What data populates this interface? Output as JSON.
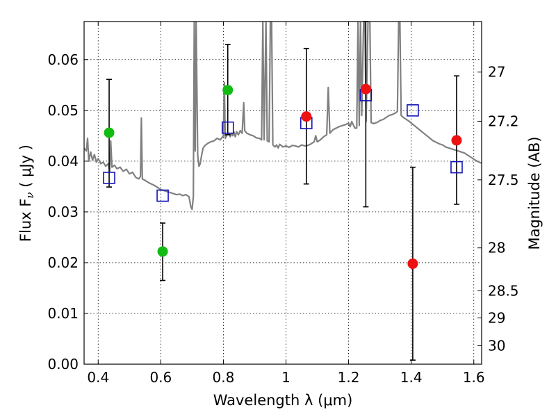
{
  "chart_data": {
    "type": "scatter",
    "title": "",
    "xlabel": "Wavelength  λ (μm)",
    "ylabel": "Flux  F",
    "ylabel_sub": "ν",
    "ylabel_unit": "  ( μJy )",
    "y2label": "Magnitude (AB)",
    "xlim": [
      0.355,
      1.625
    ],
    "ylim": [
      0.0,
      0.0675
    ],
    "grid": true,
    "legend": "none",
    "x_ticks": [
      {
        "value": 0.4,
        "label": "0.4"
      },
      {
        "value": 0.6,
        "label": "0.6"
      },
      {
        "value": 0.8,
        "label": "0.8"
      },
      {
        "value": 1.0,
        "label": "1"
      },
      {
        "value": 1.2,
        "label": "1.2"
      },
      {
        "value": 1.4,
        "label": "1.4"
      },
      {
        "value": 1.6,
        "label": "1.6"
      }
    ],
    "y_ticks": [
      {
        "value": 0.0,
        "label": "0.00"
      },
      {
        "value": 0.01,
        "label": "0.01"
      },
      {
        "value": 0.02,
        "label": "0.02"
      },
      {
        "value": 0.03,
        "label": "0.03"
      },
      {
        "value": 0.04,
        "label": "0.04"
      },
      {
        "value": 0.05,
        "label": "0.05"
      },
      {
        "value": 0.06,
        "label": "0.06"
      }
    ],
    "y2_ticks": [
      {
        "value": 27.0,
        "label": "27"
      },
      {
        "value": 27.2,
        "label": "27.2"
      },
      {
        "value": 27.5,
        "label": "27.5"
      },
      {
        "value": 28.0,
        "label": "28"
      },
      {
        "value": 28.5,
        "label": "28.5"
      },
      {
        "value": 29.0,
        "label": "29"
      },
      {
        "value": 30.0,
        "label": "30"
      }
    ],
    "colors": {
      "green": "#11bb11",
      "red": "#ee1111",
      "blue": "#1111bb",
      "spectrum": "#808080",
      "errorbar": "#000000"
    },
    "spectrum": [
      [
        0.355,
        0.0425
      ],
      [
        0.362,
        0.042
      ],
      [
        0.366,
        0.0445
      ],
      [
        0.37,
        0.04
      ],
      [
        0.376,
        0.0418
      ],
      [
        0.382,
        0.0402
      ],
      [
        0.388,
        0.0413
      ],
      [
        0.394,
        0.0398
      ],
      [
        0.4,
        0.0405
      ],
      [
        0.408,
        0.0395
      ],
      [
        0.416,
        0.0398
      ],
      [
        0.424,
        0.039
      ],
      [
        0.432,
        0.0395
      ],
      [
        0.437,
        0.038
      ],
      [
        0.44,
        0.044
      ],
      [
        0.444,
        0.0388
      ],
      [
        0.452,
        0.0392
      ],
      [
        0.46,
        0.0385
      ],
      [
        0.47,
        0.0388
      ],
      [
        0.48,
        0.038
      ],
      [
        0.49,
        0.0384
      ],
      [
        0.5,
        0.0375
      ],
      [
        0.51,
        0.0378
      ],
      [
        0.52,
        0.0368
      ],
      [
        0.53,
        0.0365
      ],
      [
        0.535,
        0.037
      ],
      [
        0.538,
        0.0485
      ],
      [
        0.541,
        0.0365
      ],
      [
        0.55,
        0.0362
      ],
      [
        0.56,
        0.0358
      ],
      [
        0.57,
        0.0355
      ],
      [
        0.58,
        0.0352
      ],
      [
        0.59,
        0.0348
      ],
      [
        0.6,
        0.0344
      ],
      [
        0.61,
        0.0342
      ],
      [
        0.62,
        0.034
      ],
      [
        0.63,
        0.0338
      ],
      [
        0.64,
        0.0336
      ],
      [
        0.65,
        0.0334
      ],
      [
        0.66,
        0.0335
      ],
      [
        0.67,
        0.0332
      ],
      [
        0.68,
        0.0334
      ],
      [
        0.69,
        0.033
      ],
      [
        0.696,
        0.031
      ],
      [
        0.7,
        0.0305
      ],
      [
        0.704,
        0.033
      ],
      [
        0.707,
        0.0675
      ],
      [
        0.71,
        0.042
      ],
      [
        0.713,
        0.0675
      ],
      [
        0.718,
        0.041
      ],
      [
        0.722,
        0.039
      ],
      [
        0.726,
        0.0395
      ],
      [
        0.73,
        0.041
      ],
      [
        0.735,
        0.0425
      ],
      [
        0.74,
        0.043
      ],
      [
        0.75,
        0.0435
      ],
      [
        0.76,
        0.0438
      ],
      [
        0.77,
        0.044
      ],
      [
        0.78,
        0.0445
      ],
      [
        0.79,
        0.0442
      ],
      [
        0.8,
        0.045
      ],
      [
        0.803,
        0.0555
      ],
      [
        0.806,
        0.0445
      ],
      [
        0.812,
        0.0452
      ],
      [
        0.818,
        0.0455
      ],
      [
        0.822,
        0.0448
      ],
      [
        0.826,
        0.0455
      ],
      [
        0.83,
        0.045
      ],
      [
        0.834,
        0.0457
      ],
      [
        0.838,
        0.0448
      ],
      [
        0.842,
        0.0458
      ],
      [
        0.848,
        0.0452
      ],
      [
        0.854,
        0.046
      ],
      [
        0.86,
        0.0455
      ],
      [
        0.865,
        0.0515
      ],
      [
        0.868,
        0.046
      ],
      [
        0.875,
        0.0455
      ],
      [
        0.885,
        0.0452
      ],
      [
        0.895,
        0.045
      ],
      [
        0.905,
        0.0446
      ],
      [
        0.915,
        0.0445
      ],
      [
        0.922,
        0.0442
      ],
      [
        0.926,
        0.0675
      ],
      [
        0.93,
        0.0442
      ],
      [
        0.936,
        0.0675
      ],
      [
        0.94,
        0.044
      ],
      [
        0.946,
        0.0438
      ],
      [
        0.95,
        0.0675
      ],
      [
        0.954,
        0.0675
      ],
      [
        0.958,
        0.0432
      ],
      [
        0.965,
        0.0428
      ],
      [
        0.97,
        0.0432
      ],
      [
        0.975,
        0.0426
      ],
      [
        0.98,
        0.0433
      ],
      [
        0.99,
        0.0428
      ],
      [
        1.0,
        0.043
      ],
      [
        1.01,
        0.0427
      ],
      [
        1.02,
        0.0431
      ],
      [
        1.03,
        0.043
      ],
      [
        1.04,
        0.0428
      ],
      [
        1.05,
        0.0432
      ],
      [
        1.06,
        0.043
      ],
      [
        1.07,
        0.0431
      ],
      [
        1.08,
        0.0434
      ],
      [
        1.09,
        0.0438
      ],
      [
        1.095,
        0.045
      ],
      [
        1.1,
        0.0438
      ],
      [
        1.11,
        0.0442
      ],
      [
        1.12,
        0.0448
      ],
      [
        1.13,
        0.0452
      ],
      [
        1.135,
        0.0545
      ],
      [
        1.14,
        0.0455
      ],
      [
        1.15,
        0.0462
      ],
      [
        1.16,
        0.0465
      ],
      [
        1.17,
        0.0468
      ],
      [
        1.18,
        0.047
      ],
      [
        1.19,
        0.0472
      ],
      [
        1.2,
        0.0475
      ],
      [
        1.205,
        0.0468
      ],
      [
        1.21,
        0.0478
      ],
      [
        1.22,
        0.0465
      ],
      [
        1.226,
        0.0465
      ],
      [
        1.23,
        0.0675
      ],
      [
        1.234,
        0.047
      ],
      [
        1.238,
        0.0675
      ],
      [
        1.242,
        0.049
      ],
      [
        1.248,
        0.0675
      ],
      [
        1.252,
        0.0675
      ],
      [
        1.256,
        0.0478
      ],
      [
        1.262,
        0.0675
      ],
      [
        1.268,
        0.0675
      ],
      [
        1.272,
        0.0476
      ],
      [
        1.28,
        0.0474
      ],
      [
        1.29,
        0.0476
      ],
      [
        1.296,
        0.0478
      ],
      [
        1.3,
        0.048
      ],
      [
        1.31,
        0.0482
      ],
      [
        1.32,
        0.0486
      ],
      [
        1.33,
        0.049
      ],
      [
        1.34,
        0.0492
      ],
      [
        1.35,
        0.0495
      ],
      [
        1.356,
        0.0498
      ],
      [
        1.36,
        0.0675
      ],
      [
        1.364,
        0.0675
      ],
      [
        1.368,
        0.049
      ],
      [
        1.375,
        0.0486
      ],
      [
        1.385,
        0.0482
      ],
      [
        1.395,
        0.0478
      ],
      [
        1.4,
        0.0475
      ],
      [
        1.41,
        0.047
      ],
      [
        1.42,
        0.0465
      ],
      [
        1.43,
        0.046
      ],
      [
        1.44,
        0.0455
      ],
      [
        1.45,
        0.045
      ],
      [
        1.46,
        0.0445
      ],
      [
        1.47,
        0.044
      ],
      [
        1.48,
        0.0437
      ],
      [
        1.49,
        0.0434
      ],
      [
        1.5,
        0.0432
      ],
      [
        1.51,
        0.0428
      ],
      [
        1.52,
        0.0426
      ],
      [
        1.53,
        0.0424
      ],
      [
        1.54,
        0.0422
      ],
      [
        1.55,
        0.042
      ],
      [
        1.56,
        0.0418
      ],
      [
        1.57,
        0.0416
      ],
      [
        1.58,
        0.0412
      ],
      [
        1.59,
        0.0408
      ],
      [
        1.6,
        0.0404
      ],
      [
        1.61,
        0.04
      ],
      [
        1.625,
        0.0396
      ]
    ],
    "model_points": [
      {
        "x": 0.435,
        "y": 0.0367
      },
      {
        "x": 0.606,
        "y": 0.0332
      },
      {
        "x": 0.814,
        "y": 0.0466
      },
      {
        "x": 1.065,
        "y": 0.0475
      },
      {
        "x": 1.255,
        "y": 0.053
      },
      {
        "x": 1.405,
        "y": 0.05
      },
      {
        "x": 1.545,
        "y": 0.0388
      }
    ],
    "observed_points": [
      {
        "x": 0.435,
        "y": 0.0456,
        "ylow": 0.0349,
        "yhigh": 0.0561,
        "color": "green"
      },
      {
        "x": 0.606,
        "y": 0.0222,
        "ylow": 0.0165,
        "yhigh": 0.0278,
        "color": "green"
      },
      {
        "x": 0.814,
        "y": 0.054,
        "ylow": 0.0452,
        "yhigh": 0.063,
        "color": "green"
      },
      {
        "x": 1.065,
        "y": 0.0488,
        "ylow": 0.0355,
        "yhigh": 0.0622,
        "color": "red"
      },
      {
        "x": 1.255,
        "y": 0.0542,
        "ylow": 0.031,
        "yhigh": 0.0675,
        "color": "red"
      },
      {
        "x": 1.405,
        "y": 0.0198,
        "ylow": 0.0008,
        "yhigh": 0.0388,
        "color": "red"
      },
      {
        "x": 1.545,
        "y": 0.0441,
        "ylow": 0.0315,
        "yhigh": 0.0568,
        "color": "red"
      }
    ]
  }
}
